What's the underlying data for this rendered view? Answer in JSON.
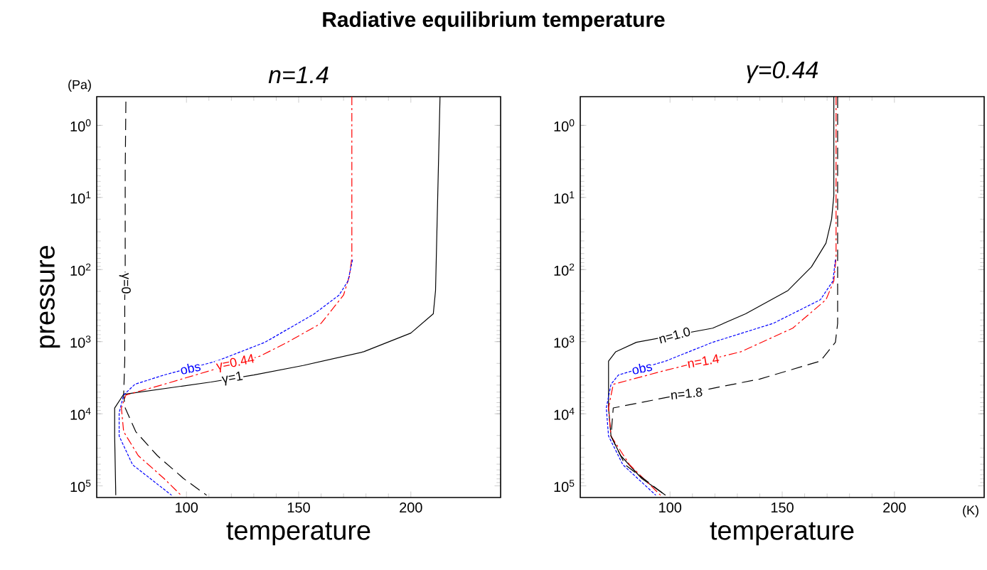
{
  "chart_data": [
    {
      "type": "line",
      "title": "Radiative equilibrium temperature",
      "subtitle": "n=1.4",
      "xlabel": "temperature",
      "ylabel": "pressure",
      "log": "y",
      "xlim": [
        60,
        240
      ],
      "ylim": [
        145000,
        0.4
      ],
      "xticks": [
        100,
        150,
        200
      ],
      "yticks": [
        {
          "value": 1,
          "label": "10$^{0}$"
        },
        {
          "value": 10,
          "label": "10$^{1}$"
        },
        {
          "value": 100,
          "label": "10$^{2}$"
        },
        {
          "value": 1000,
          "label": "10$^{3}$"
        },
        {
          "value": 10000,
          "label": "10$^{4}$"
        },
        {
          "value": 100000,
          "label": "10$^{5}$"
        }
      ],
      "annotations": [
        "(Pa)"
      ],
      "series": [
        {
          "name": "γ=1",
          "color": "#000000",
          "line_style": "solid",
          "x": [
            213,
            211,
            210,
            200,
            179,
            152,
            130,
            111,
            72,
            68,
            68,
            68.5
          ],
          "values": [
            0.4,
            195,
            410,
            760,
            1380,
            2140,
            2900,
            3630,
            5370,
            8320,
            20400,
            135000
          ]
        },
        {
          "name": "γ=0.44",
          "color": "#ff0000",
          "line_style": "dashdot",
          "x": [
            173.7,
            173.7,
            172.6,
            170,
            160,
            145,
            132.7,
            111,
            90,
            73,
            71,
            72,
            78.5,
            90,
            97.6
          ],
          "values": [
            0.4,
            68,
            124,
            226,
            557,
            1020,
            1590,
            2500,
            3900,
            5500,
            8300,
            17700,
            38000,
            79000,
            135000
          ]
        },
        {
          "name": "obs",
          "color": "#0000ff",
          "line_style": "dotted",
          "x": [
            174,
            172,
            168,
            157,
            135,
            113.5,
            90,
            77,
            72,
            70,
            70,
            76,
            93.4
          ],
          "values": [
            73,
            144,
            226,
            410,
            1020,
            1860,
            2900,
            3900,
            5500,
            9700,
            20400,
            51000,
            135000
          ]
        },
        {
          "name": "γ=0",
          "color": "#000000",
          "line_style": "dashed",
          "x": [
            73,
            72.7,
            72.7,
            72.5,
            72.5,
            72,
            72.7,
            77.4,
            87,
            98.7,
            109
          ],
          "values": [
            0.47,
            4.5,
            92,
            263,
            1860,
            5500,
            8300,
            17700,
            38000,
            79000,
            135000
          ]
        }
      ]
    },
    {
      "type": "line",
      "title": "γ=0.44",
      "xlabel": "temperature",
      "log": "y",
      "xlim": [
        60,
        240
      ],
      "ylim": [
        145000,
        0.4
      ],
      "xticks": [
        100,
        150,
        200
      ],
      "yticks": [
        {
          "value": 1,
          "label": "10$^{0}$"
        },
        {
          "value": 10,
          "label": "10$^{1}$"
        },
        {
          "value": 100,
          "label": "10$^{2}$"
        },
        {
          "value": 1000,
          "label": "10$^{3}$"
        },
        {
          "value": 10000,
          "label": "10$^{4}$"
        },
        {
          "value": 100000,
          "label": "10$^{5}$"
        }
      ],
      "annotations": [
        "(K)"
      ],
      "series": [
        {
          "name": "n=1.0",
          "color": "#000000",
          "line_style": "solid",
          "x": [
            173,
            173,
            172,
            169.5,
            163,
            152.6,
            133.7,
            119,
            85,
            75.8,
            72.6,
            72.6,
            73.7,
            78,
            87.4,
            98
          ],
          "values": [
            0.4,
            9.5,
            20,
            43,
            92,
            195,
            410,
            650,
            1020,
            1380,
            1860,
            8300,
            20400,
            38000,
            79000,
            135000
          ]
        },
        {
          "name": "obs",
          "color": "#0000ff",
          "line_style": "dotted",
          "x": [
            173.7,
            172.6,
            167,
            146,
            119,
            98,
            77,
            73.7,
            71.6,
            72.6,
            79,
            93.7
          ],
          "values": [
            73,
            144,
            262,
            557,
            1020,
            1860,
            2900,
            3900,
            8300,
            20400,
            51000,
            135000
          ]
        },
        {
          "name": "n=1.4",
          "color": "#ff0000",
          "line_style": "dashdot",
          "x": [
            174,
            174,
            173,
            169.5,
            154.7,
            131.6,
            98,
            74.7,
            72.6,
            73.7,
            82,
            95.8
          ],
          "values": [
            0.4,
            68,
            144,
            262,
            650,
            1380,
            2500,
            3900,
            8300,
            20400,
            51000,
            135000
          ]
        },
        {
          "name": "n=1.8",
          "color": "#000000",
          "line_style": "dashed",
          "x": [
            174.7,
            174.7,
            173.7,
            167,
            140,
            74.7,
            73.7,
            80,
            98
          ],
          "values": [
            0.4,
            557,
            1020,
            1860,
            3300,
            8300,
            20400,
            51000,
            135000
          ]
        }
      ]
    }
  ]
}
